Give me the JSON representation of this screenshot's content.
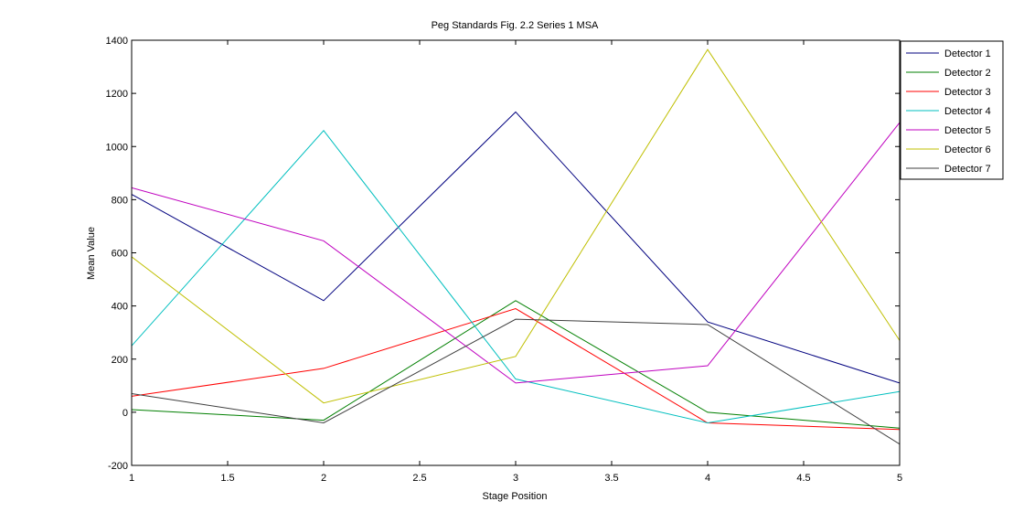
{
  "chart_data": {
    "type": "line",
    "title": "Peg Standards Fig. 2.2 Series 1 MSA",
    "xlabel": "Stage Position",
    "ylabel": "Mean Value",
    "xlim": [
      1,
      5
    ],
    "ylim": [
      -200,
      1400
    ],
    "xticks": [
      1,
      1.5,
      2,
      2.5,
      3,
      3.5,
      4,
      4.5,
      5
    ],
    "xtick_labels": [
      "1",
      "1.5",
      "2",
      "2.5",
      "3",
      "3.5",
      "4",
      "4.5",
      "5"
    ],
    "yticks": [
      -200,
      0,
      200,
      400,
      600,
      800,
      1000,
      1200,
      1400
    ],
    "ytick_labels": [
      "-200",
      "0",
      "200",
      "400",
      "600",
      "800",
      "1000",
      "1200",
      "1400"
    ],
    "grid": false,
    "legend_position": "top-right",
    "x": [
      1,
      2,
      3,
      4,
      5
    ],
    "series": [
      {
        "name": "Detector 1",
        "color": "#00007f",
        "values": [
          820,
          420,
          1130,
          340,
          110
        ]
      },
      {
        "name": "Detector 2",
        "color": "#007f00",
        "values": [
          10,
          -30,
          420,
          0,
          -60
        ]
      },
      {
        "name": "Detector 3",
        "color": "#ff0000",
        "values": [
          60,
          165,
          390,
          -40,
          -65
        ]
      },
      {
        "name": "Detector 4",
        "color": "#00bfbf",
        "values": [
          250,
          1060,
          125,
          -40,
          78
        ]
      },
      {
        "name": "Detector 5",
        "color": "#bf00bf",
        "values": [
          845,
          645,
          110,
          175,
          1090
        ]
      },
      {
        "name": "Detector 6",
        "color": "#bfbf00",
        "values": [
          585,
          35,
          210,
          1365,
          270
        ]
      },
      {
        "name": "Detector 7",
        "color": "#3f3f3f",
        "values": [
          70,
          -40,
          350,
          330,
          -120
        ]
      }
    ]
  }
}
